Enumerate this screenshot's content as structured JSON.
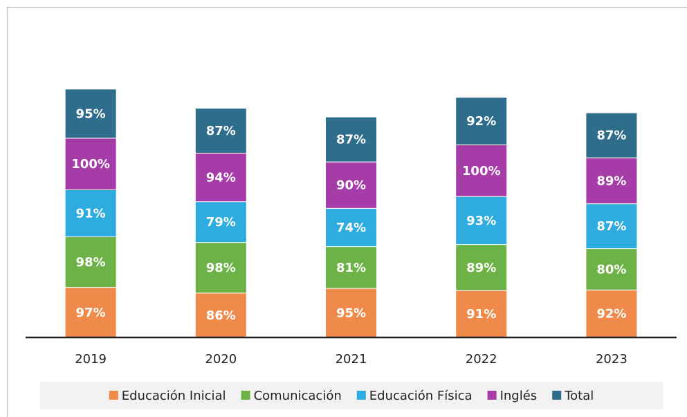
{
  "chart_data": {
    "type": "stacked_bar",
    "categories": [
      "2019",
      "2020",
      "2021",
      "2022",
      "2023"
    ],
    "series": [
      {
        "name": "Educación Inicial",
        "color": "#f08a4b",
        "values": [
          97,
          86,
          95,
          91,
          92
        ],
        "value_labels": [
          "97%",
          "86%",
          "95%",
          "91%",
          "92%"
        ]
      },
      {
        "name": "Comunicación",
        "color": "#6db246",
        "values": [
          98,
          98,
          81,
          89,
          80
        ],
        "value_labels": [
          "98%",
          "98%",
          "81%",
          "89%",
          "80%"
        ]
      },
      {
        "name": "Educación Física",
        "color": "#2eabdf",
        "values": [
          91,
          79,
          74,
          93,
          87
        ],
        "value_labels": [
          "91%",
          "79%",
          "74%",
          "93%",
          "87%"
        ]
      },
      {
        "name": "Inglés",
        "color": "#a63ca7",
        "values": [
          100,
          94,
          90,
          100,
          89
        ],
        "value_labels": [
          "100%",
          "94%",
          "90%",
          "100%",
          "89%"
        ]
      },
      {
        "name": "Total",
        "color": "#2f6d8c",
        "values": [
          95,
          87,
          87,
          92,
          87
        ],
        "value_labels": [
          "95%",
          "87%",
          "87%",
          "92%",
          "87%"
        ]
      }
    ],
    "ylim": [
      0,
      600
    ],
    "legend": "bottom"
  }
}
